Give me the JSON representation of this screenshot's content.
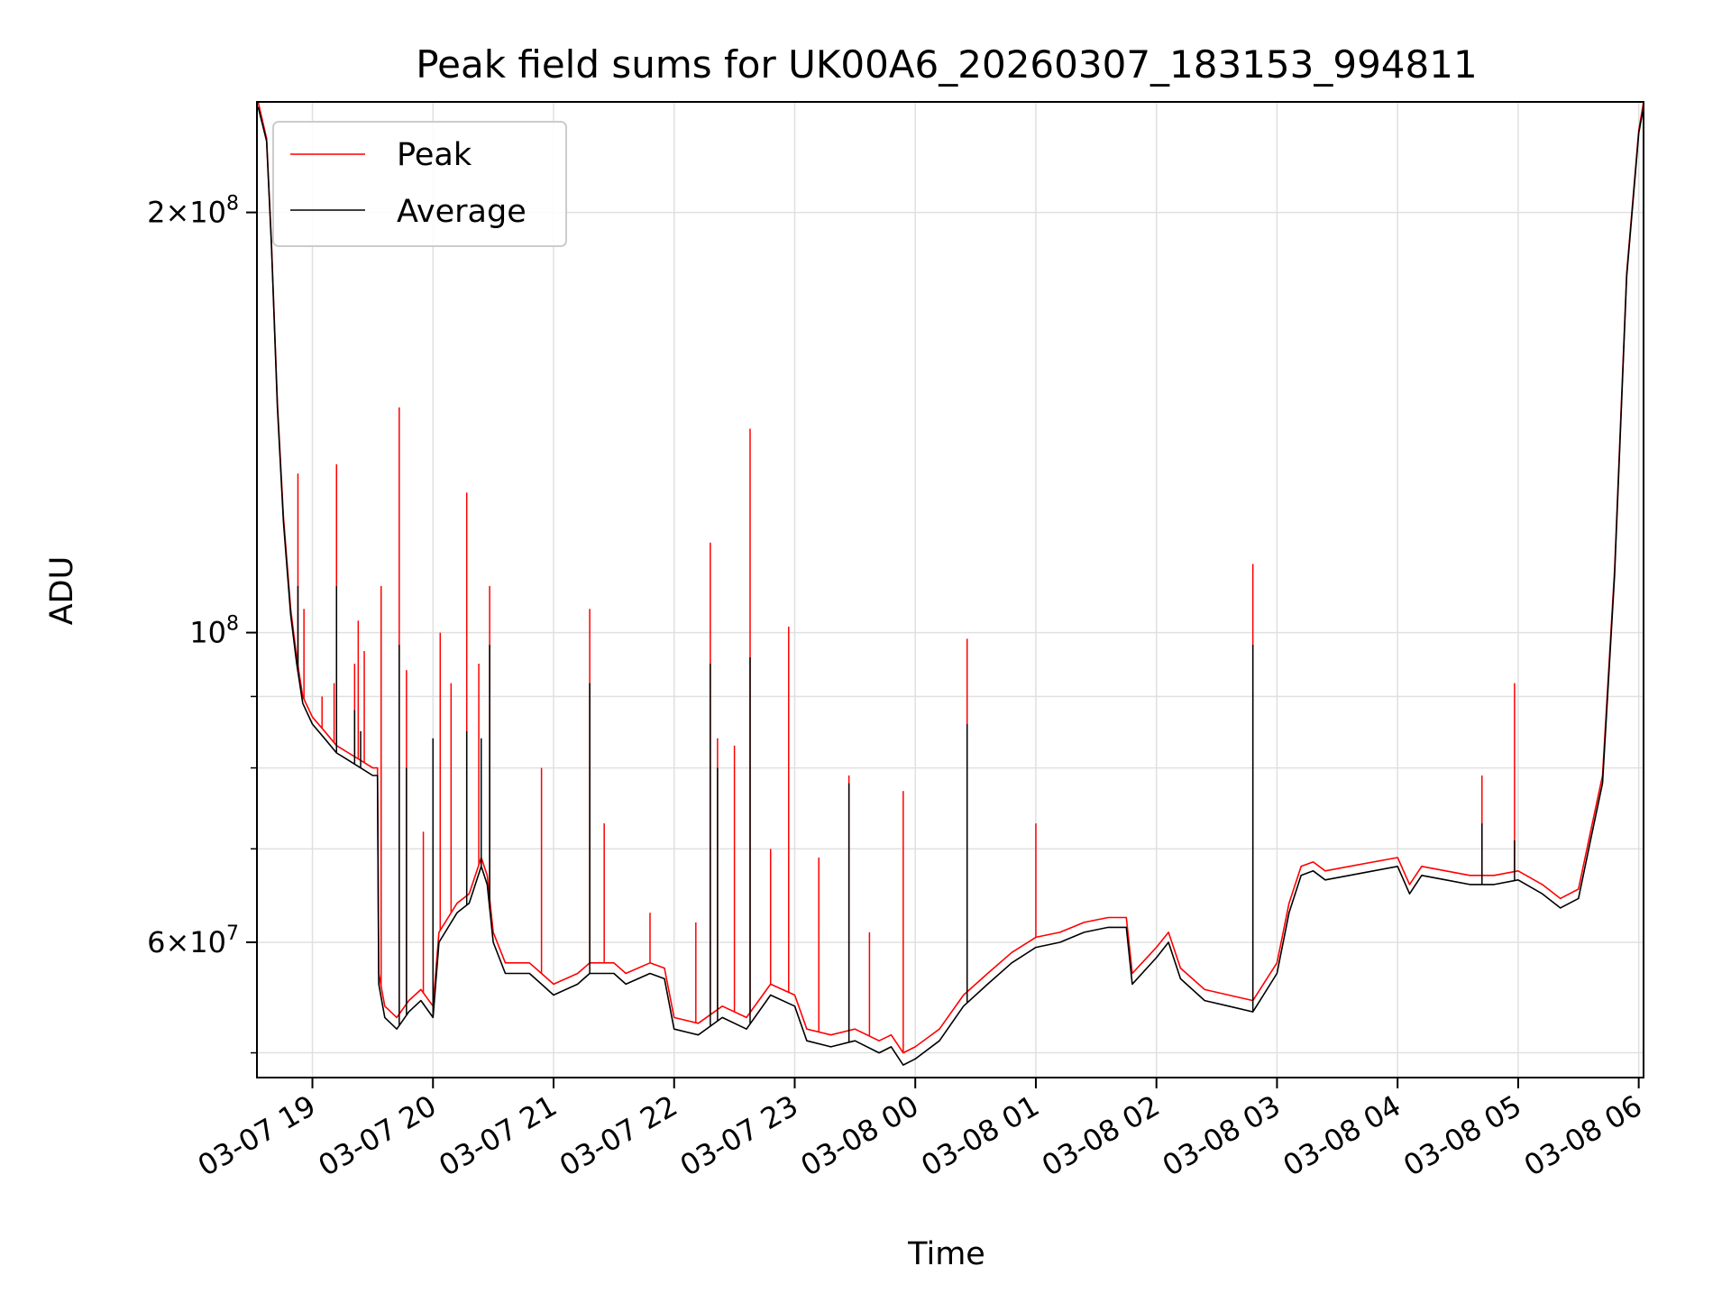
{
  "chart_data": {
    "type": "line",
    "title": "Peak field sums for UK00A6_20260307_183153_994811",
    "xlabel": "Time",
    "ylabel": "ADU",
    "yscale": "log",
    "ylim": [
      48000000,
      240000000
    ],
    "xlim_hours": [
      18.54,
      30.04
    ],
    "grid": true,
    "legend": {
      "placement": "top-left",
      "entries": [
        {
          "name": "Peak",
          "color": "#ff0000"
        },
        {
          "name": "Average",
          "color": "#000000"
        }
      ]
    },
    "x_ticks": [
      {
        "hour": 19,
        "label": "03-07 19"
      },
      {
        "hour": 20,
        "label": "03-07 20"
      },
      {
        "hour": 21,
        "label": "03-07 21"
      },
      {
        "hour": 22,
        "label": "03-07 22"
      },
      {
        "hour": 23,
        "label": "03-07 23"
      },
      {
        "hour": 24,
        "label": "03-08 00"
      },
      {
        "hour": 25,
        "label": "03-08 01"
      },
      {
        "hour": 26,
        "label": "03-08 02"
      },
      {
        "hour": 27,
        "label": "03-08 03"
      },
      {
        "hour": 28,
        "label": "03-08 04"
      },
      {
        "hour": 29,
        "label": "03-08 05"
      },
      {
        "hour": 30,
        "label": "03-08 06"
      }
    ],
    "y_ticks_major": [
      {
        "value": 60000000,
        "mantissa": "6",
        "exponent": "7"
      },
      {
        "value": 100000000,
        "mantissa": "",
        "exponent": "8"
      },
      {
        "value": 200000000,
        "mantissa": "2",
        "exponent": "8"
      }
    ],
    "y_ticks_minor": [
      50000000,
      70000000,
      80000000,
      90000000
    ],
    "series": [
      {
        "name": "Average",
        "color": "#000000",
        "points": [
          [
            18.55,
            238000000
          ],
          [
            18.62,
            225000000
          ],
          [
            18.66,
            190000000
          ],
          [
            18.71,
            145000000
          ],
          [
            18.76,
            120000000
          ],
          [
            18.82,
            103000000
          ],
          [
            18.87,
            95000000
          ],
          [
            18.92,
            89000000
          ],
          [
            19.0,
            86000000
          ],
          [
            19.1,
            84000000
          ],
          [
            19.2,
            82000000
          ],
          [
            19.3,
            81000000
          ],
          [
            19.4,
            80000000
          ],
          [
            19.5,
            79000000
          ],
          [
            19.54,
            79000000
          ],
          [
            19.55,
            56000000
          ],
          [
            19.6,
            53000000
          ],
          [
            19.7,
            52000000
          ],
          [
            19.8,
            53500000
          ],
          [
            19.9,
            54500000
          ],
          [
            20.0,
            53000000
          ],
          [
            20.05,
            60000000
          ],
          [
            20.2,
            63000000
          ],
          [
            20.3,
            64000000
          ],
          [
            20.4,
            68000000
          ],
          [
            20.45,
            66000000
          ],
          [
            20.5,
            60000000
          ],
          [
            20.6,
            57000000
          ],
          [
            20.8,
            57000000
          ],
          [
            20.9,
            56000000
          ],
          [
            21.0,
            55000000
          ],
          [
            21.2,
            56000000
          ],
          [
            21.3,
            57000000
          ],
          [
            21.5,
            57000000
          ],
          [
            21.6,
            56000000
          ],
          [
            21.8,
            57000000
          ],
          [
            21.92,
            56500000
          ],
          [
            22.0,
            52000000
          ],
          [
            22.2,
            51500000
          ],
          [
            22.4,
            53000000
          ],
          [
            22.6,
            52000000
          ],
          [
            22.8,
            55000000
          ],
          [
            23.0,
            54000000
          ],
          [
            23.1,
            51000000
          ],
          [
            23.3,
            50500000
          ],
          [
            23.5,
            51000000
          ],
          [
            23.7,
            50000000
          ],
          [
            23.8,
            50500000
          ],
          [
            23.9,
            49000000
          ],
          [
            24.0,
            49500000
          ],
          [
            24.2,
            51000000
          ],
          [
            24.4,
            54000000
          ],
          [
            24.6,
            56000000
          ],
          [
            24.8,
            58000000
          ],
          [
            25.0,
            59500000
          ],
          [
            25.2,
            60000000
          ],
          [
            25.4,
            61000000
          ],
          [
            25.6,
            61500000
          ],
          [
            25.75,
            61500000
          ],
          [
            25.8,
            56000000
          ],
          [
            26.0,
            58500000
          ],
          [
            26.1,
            60000000
          ],
          [
            26.2,
            56500000
          ],
          [
            26.4,
            54500000
          ],
          [
            26.6,
            54000000
          ],
          [
            26.8,
            53500000
          ],
          [
            27.0,
            57000000
          ],
          [
            27.1,
            63000000
          ],
          [
            27.2,
            67000000
          ],
          [
            27.3,
            67500000
          ],
          [
            27.4,
            66500000
          ],
          [
            27.6,
            67000000
          ],
          [
            27.8,
            67500000
          ],
          [
            28.0,
            68000000
          ],
          [
            28.1,
            65000000
          ],
          [
            28.2,
            67000000
          ],
          [
            28.4,
            66500000
          ],
          [
            28.6,
            66000000
          ],
          [
            28.8,
            66000000
          ],
          [
            29.0,
            66500000
          ],
          [
            29.2,
            65000000
          ],
          [
            29.35,
            63500000
          ],
          [
            29.5,
            64500000
          ],
          [
            29.6,
            71000000
          ],
          [
            29.7,
            78000000
          ],
          [
            29.8,
            110000000
          ],
          [
            29.9,
            180000000
          ],
          [
            30.0,
            228000000
          ],
          [
            30.04,
            238000000
          ]
        ],
        "spikes": [
          [
            18.88,
            108000000
          ],
          [
            19.2,
            108000000
          ],
          [
            19.35,
            88000000
          ],
          [
            19.4,
            85000000
          ],
          [
            19.72,
            98000000
          ],
          [
            19.78,
            80000000
          ],
          [
            20.0,
            84000000
          ],
          [
            20.28,
            85000000
          ],
          [
            20.4,
            84000000
          ],
          [
            20.47,
            98000000
          ],
          [
            21.3,
            92000000
          ],
          [
            22.3,
            95000000
          ],
          [
            22.36,
            80000000
          ],
          [
            22.63,
            96000000
          ],
          [
            23.45,
            78000000
          ],
          [
            24.43,
            86000000
          ],
          [
            26.8,
            98000000
          ],
          [
            28.7,
            73000000
          ],
          [
            28.97,
            71000000
          ]
        ]
      },
      {
        "name": "Peak",
        "color": "#ff0000",
        "points": [
          [
            18.55,
            240000000
          ],
          [
            18.62,
            226000000
          ],
          [
            18.66,
            191000000
          ],
          [
            18.71,
            146000000
          ],
          [
            18.76,
            121000000
          ],
          [
            18.82,
            104000000
          ],
          [
            18.87,
            96000000
          ],
          [
            18.92,
            90000000
          ],
          [
            19.0,
            87000000
          ],
          [
            19.1,
            85000000
          ],
          [
            19.2,
            83000000
          ],
          [
            19.3,
            82000000
          ],
          [
            19.4,
            81000000
          ],
          [
            19.5,
            80000000
          ],
          [
            19.54,
            80000000
          ],
          [
            19.55,
            57000000
          ],
          [
            19.6,
            54000000
          ],
          [
            19.7,
            53000000
          ],
          [
            19.8,
            54500000
          ],
          [
            19.9,
            55500000
          ],
          [
            20.0,
            54000000
          ],
          [
            20.05,
            61000000
          ],
          [
            20.2,
            64000000
          ],
          [
            20.3,
            65000000
          ],
          [
            20.4,
            69000000
          ],
          [
            20.45,
            67000000
          ],
          [
            20.5,
            61000000
          ],
          [
            20.6,
            58000000
          ],
          [
            20.8,
            58000000
          ],
          [
            20.9,
            57000000
          ],
          [
            21.0,
            56000000
          ],
          [
            21.2,
            57000000
          ],
          [
            21.3,
            58000000
          ],
          [
            21.5,
            58000000
          ],
          [
            21.6,
            57000000
          ],
          [
            21.8,
            58000000
          ],
          [
            21.92,
            57500000
          ],
          [
            22.0,
            53000000
          ],
          [
            22.2,
            52500000
          ],
          [
            22.4,
            54000000
          ],
          [
            22.6,
            53000000
          ],
          [
            22.8,
            56000000
          ],
          [
            23.0,
            55000000
          ],
          [
            23.1,
            52000000
          ],
          [
            23.3,
            51500000
          ],
          [
            23.5,
            52000000
          ],
          [
            23.7,
            51000000
          ],
          [
            23.8,
            51500000
          ],
          [
            23.9,
            50000000
          ],
          [
            24.0,
            50500000
          ],
          [
            24.2,
            52000000
          ],
          [
            24.4,
            55000000
          ],
          [
            24.6,
            57000000
          ],
          [
            24.8,
            59000000
          ],
          [
            25.0,
            60500000
          ],
          [
            25.2,
            61000000
          ],
          [
            25.4,
            62000000
          ],
          [
            25.6,
            62500000
          ],
          [
            25.75,
            62500000
          ],
          [
            25.8,
            57000000
          ],
          [
            26.0,
            59500000
          ],
          [
            26.1,
            61000000
          ],
          [
            26.2,
            57500000
          ],
          [
            26.4,
            55500000
          ],
          [
            26.6,
            55000000
          ],
          [
            26.8,
            54500000
          ],
          [
            27.0,
            58000000
          ],
          [
            27.1,
            64000000
          ],
          [
            27.2,
            68000000
          ],
          [
            27.3,
            68500000
          ],
          [
            27.4,
            67500000
          ],
          [
            27.6,
            68000000
          ],
          [
            27.8,
            68500000
          ],
          [
            28.0,
            69000000
          ],
          [
            28.1,
            66000000
          ],
          [
            28.2,
            68000000
          ],
          [
            28.4,
            67500000
          ],
          [
            28.6,
            67000000
          ],
          [
            28.8,
            67000000
          ],
          [
            29.0,
            67500000
          ],
          [
            29.2,
            66000000
          ],
          [
            29.35,
            64500000
          ],
          [
            29.5,
            65500000
          ],
          [
            29.6,
            72000000
          ],
          [
            29.7,
            79000000
          ],
          [
            29.8,
            111000000
          ],
          [
            29.9,
            181000000
          ],
          [
            30.0,
            229000000
          ],
          [
            30.04,
            240000000
          ]
        ],
        "spikes": [
          [
            18.88,
            130000000
          ],
          [
            18.93,
            104000000
          ],
          [
            19.08,
            90000000
          ],
          [
            19.18,
            92000000
          ],
          [
            19.2,
            132000000
          ],
          [
            19.35,
            95000000
          ],
          [
            19.38,
            102000000
          ],
          [
            19.43,
            97000000
          ],
          [
            19.57,
            108000000
          ],
          [
            19.72,
            145000000
          ],
          [
            19.78,
            94000000
          ],
          [
            19.92,
            72000000
          ],
          [
            20.06,
            100000000
          ],
          [
            20.15,
            92000000
          ],
          [
            20.28,
            126000000
          ],
          [
            20.38,
            95000000
          ],
          [
            20.47,
            108000000
          ],
          [
            20.9,
            80000000
          ],
          [
            21.3,
            104000000
          ],
          [
            21.42,
            73000000
          ],
          [
            21.8,
            63000000
          ],
          [
            22.18,
            62000000
          ],
          [
            22.3,
            116000000
          ],
          [
            22.36,
            84000000
          ],
          [
            22.5,
            83000000
          ],
          [
            22.63,
            140000000
          ],
          [
            22.8,
            70000000
          ],
          [
            22.95,
            101000000
          ],
          [
            23.2,
            69000000
          ],
          [
            23.45,
            79000000
          ],
          [
            23.62,
            61000000
          ],
          [
            23.9,
            77000000
          ],
          [
            24.43,
            99000000
          ],
          [
            25.0,
            73000000
          ],
          [
            26.8,
            112000000
          ],
          [
            28.7,
            79000000
          ],
          [
            28.97,
            92000000
          ]
        ]
      }
    ]
  }
}
